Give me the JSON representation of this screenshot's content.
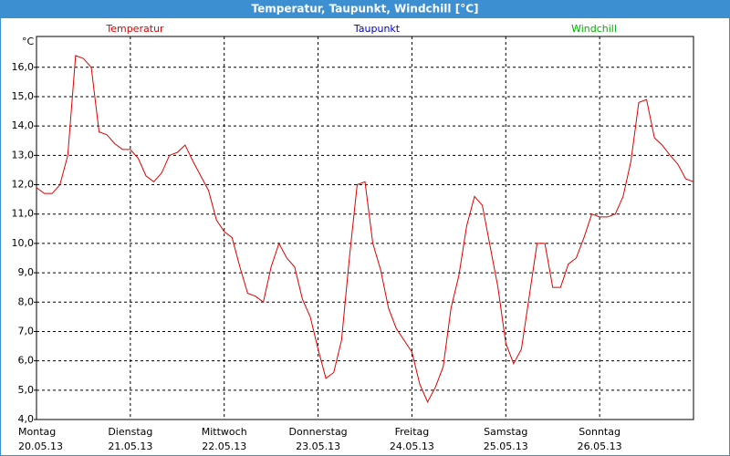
{
  "chart_data": {
    "type": "line",
    "title": "Temperatur, Taupunkt, Windchill [°C]",
    "y_label": "°C",
    "xtick_labels": [
      {
        "day": "Montag",
        "date": "20.05.13"
      },
      {
        "day": "Dienstag",
        "date": "21.05.13"
      },
      {
        "day": "Mittwoch",
        "date": "22.05.13"
      },
      {
        "day": "Donnerstag",
        "date": "23.05.13"
      },
      {
        "day": "Freitag",
        "date": "24.05.13"
      },
      {
        "day": "Samstag",
        "date": "25.05.13"
      },
      {
        "day": "Sonntag",
        "date": "26.05.13"
      },
      null
    ],
    "series": [
      {
        "name": "Temperatur",
        "color": "#e00000",
        "values": [
          11.9,
          11.7,
          11.7,
          12.0,
          13.0,
          16.4,
          16.3,
          16.0,
          13.8,
          13.7,
          13.4,
          13.2,
          13.2,
          12.9,
          12.3,
          12.1,
          12.4,
          13.0,
          13.1,
          13.35,
          12.8,
          12.3,
          11.8,
          10.8,
          10.4,
          10.2,
          9.2,
          8.3,
          8.2,
          8.0,
          9.2,
          10.0,
          9.5,
          9.2,
          8.1,
          7.5,
          6.4,
          5.4,
          5.6,
          6.7,
          9.5,
          12.0,
          12.1,
          10.0,
          9.1,
          7.8,
          7.1,
          6.7,
          6.3,
          5.2,
          4.6,
          5.1,
          5.8,
          7.8,
          8.9,
          10.6,
          11.6,
          11.3,
          9.9,
          8.5,
          6.6,
          5.9,
          6.4,
          8.2,
          10.0,
          10.0,
          8.5,
          8.5,
          9.3,
          9.5,
          10.2,
          11.0,
          10.9,
          10.9,
          11.0,
          11.6,
          12.8,
          14.8,
          14.9,
          13.6,
          13.35,
          13.0,
          12.7,
          12.2,
          12.1
        ]
      },
      {
        "name": "Taupunkt",
        "color": "#0000c0",
        "values": []
      },
      {
        "name": "Windchill",
        "color": "#00b000",
        "values": []
      }
    ],
    "ylim": [
      4,
      17.05
    ],
    "yticks": [
      {
        "value": 4,
        "label": "4,0"
      },
      {
        "value": 5,
        "label": "5,0"
      },
      {
        "value": 6,
        "label": "6,0"
      },
      {
        "value": 7,
        "label": "7,0"
      },
      {
        "value": 8,
        "label": "8,0"
      },
      {
        "value": 9,
        "label": "9,0"
      },
      {
        "value": 10,
        "label": "10,0"
      },
      {
        "value": 11,
        "label": "11,0"
      },
      {
        "value": 12,
        "label": "12,0"
      },
      {
        "value": 13,
        "label": "13,0"
      },
      {
        "value": 14,
        "label": "14,0"
      },
      {
        "value": 15,
        "label": "15,0"
      },
      {
        "value": 16,
        "label": "16,0"
      }
    ],
    "grid": true
  }
}
